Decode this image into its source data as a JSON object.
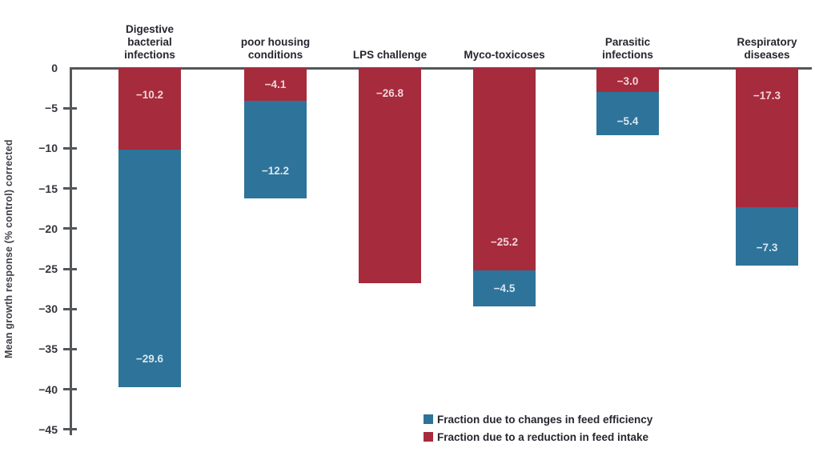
{
  "chart_data": {
    "type": "bar",
    "stacked": true,
    "title": "",
    "xlabel": "",
    "ylabel": "Mean growth response (% control) corrected",
    "ylim": [
      -45,
      0
    ],
    "yticks": [
      0,
      -5,
      -10,
      -15,
      -20,
      -25,
      -30,
      -35,
      -40,
      -45
    ],
    "grid": false,
    "legend_position": "bottom-center",
    "categories": [
      {
        "label": "Digestive bacterial infections",
        "lines": [
          "Digestive",
          "bacterial",
          "infections"
        ]
      },
      {
        "label": "poor housing conditions",
        "lines": [
          "poor housing",
          "conditions"
        ]
      },
      {
        "label": "LPS challenge",
        "lines": [
          "LPS challenge"
        ]
      },
      {
        "label": "Myco-toxicoses",
        "lines": [
          "Myco-toxicoses"
        ]
      },
      {
        "label": "Parasitic infections",
        "lines": [
          "Parasitic",
          "infections"
        ]
      },
      {
        "label": "Respiratory diseases",
        "lines": [
          "Respiratory",
          "diseases"
        ]
      }
    ],
    "series": [
      {
        "name": "Fraction due to a reduction in feed intake",
        "key": "feed-intake",
        "color": "#a62b3d",
        "label_color": "#f0d5d9",
        "values": [
          -10.2,
          -4.1,
          -26.8,
          -25.2,
          -3.0,
          -17.3
        ]
      },
      {
        "name": "Fraction due to changes in feed efficiency",
        "key": "feed-efficiency",
        "color": "#2e7399",
        "label_color": "#d9e7f0",
        "values": [
          -29.6,
          -12.2,
          null,
          -4.5,
          -5.4,
          -7.3
        ]
      }
    ],
    "legend": [
      {
        "label": "Fraction due to changes in feed efficiency",
        "color": "#2e7399"
      },
      {
        "label": "Fraction due to a reduction in feed intake",
        "color": "#a62b3d"
      }
    ],
    "colors": {
      "axis": "#54575a",
      "category_text": "#26262f",
      "tick_text": "#33333c",
      "background": "#ffffff"
    }
  }
}
